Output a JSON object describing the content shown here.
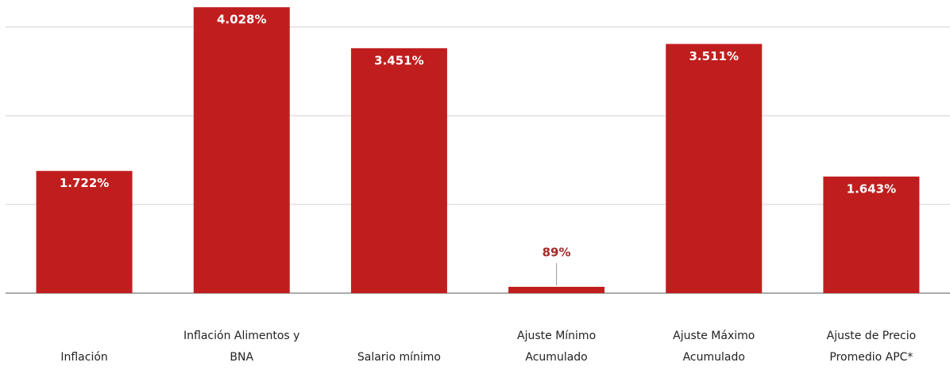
{
  "chart_data": {
    "type": "bar",
    "categories": [
      "Inflación",
      "Inflación Alimentos y BNA",
      "Salario mínimo",
      "Ajuste Mínimo Acumulado",
      "Ajuste Máximo Acumulado",
      "Ajuste de Precio Promedio APC*"
    ],
    "values": [
      1722,
      4028,
      3451,
      89,
      3511,
      1643
    ],
    "value_labels": [
      "1.722%",
      "4.028%",
      "3.451%",
      "89%",
      "3.511%",
      "1.643%"
    ],
    "color": "#c01e1e",
    "ylim": [
      0,
      4130
    ],
    "yticks": [
      0,
      1250,
      2500,
      3750
    ],
    "grid": true
  }
}
